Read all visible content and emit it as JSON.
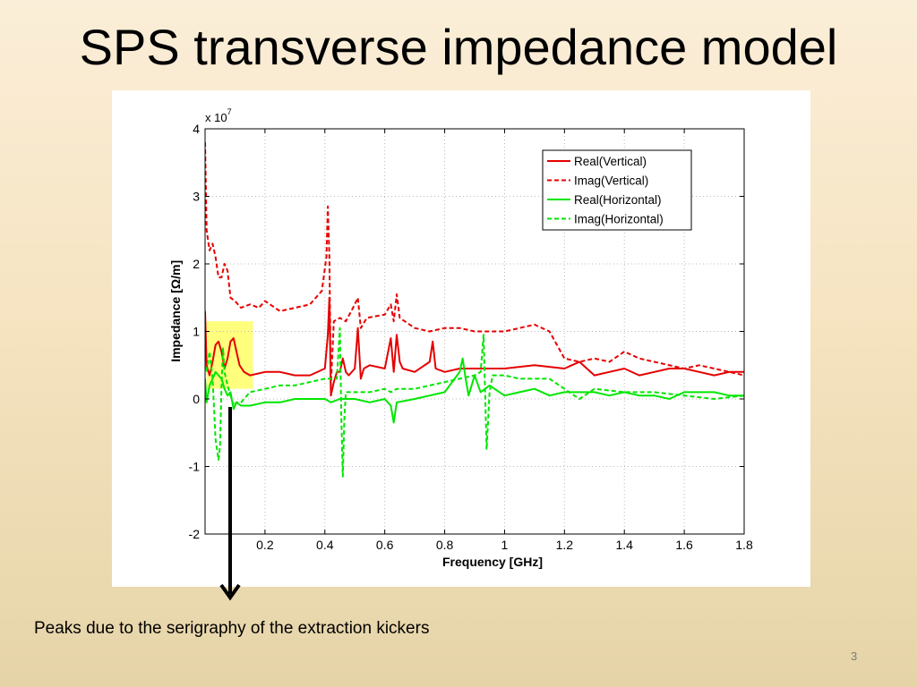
{
  "slide": {
    "title": "SPS transverse impedance model",
    "caption": "Peaks due to the serigraphy of the extraction kickers",
    "page_number": "3"
  },
  "colors": {
    "vertical": "#e60000",
    "horizontal": "#00e600",
    "highlight": "#ffff66"
  },
  "chart_data": {
    "type": "line",
    "title": "",
    "xlabel": "Frequency [GHz]",
    "ylabel": "Impedance [Ω/m]",
    "y_multiplier": "x 10",
    "y_multiplier_exp": "7",
    "xlim": [
      0,
      1.8
    ],
    "ylim": [
      -2,
      4
    ],
    "xticks": [
      0.2,
      0.4,
      0.6,
      0.8,
      1,
      1.2,
      1.4,
      1.6,
      1.8
    ],
    "xtick_labels": [
      "0.2",
      "0.4",
      "0.6",
      "0.8",
      "1",
      "1.2",
      "1.4",
      "1.6",
      "1.8"
    ],
    "yticks": [
      -2,
      -1,
      0,
      1,
      2,
      3,
      4
    ],
    "ytick_labels": [
      "-2",
      "-1",
      "0",
      "1",
      "2",
      "3",
      "4"
    ],
    "grid": true,
    "legend_position": "top-right",
    "highlight_region": {
      "x": [
        0.005,
        0.16
      ],
      "y": [
        0.15,
        1.15
      ]
    },
    "series": [
      {
        "name": "Real(Vertical)",
        "color": "#e60000",
        "dash": "solid",
        "x": [
          0.0,
          0.005,
          0.015,
          0.025,
          0.035,
          0.045,
          0.055,
          0.065,
          0.075,
          0.085,
          0.095,
          0.105,
          0.115,
          0.13,
          0.15,
          0.2,
          0.25,
          0.3,
          0.35,
          0.4,
          0.41,
          0.415,
          0.42,
          0.43,
          0.44,
          0.45,
          0.46,
          0.47,
          0.48,
          0.5,
          0.51,
          0.52,
          0.53,
          0.55,
          0.6,
          0.62,
          0.63,
          0.64,
          0.65,
          0.66,
          0.7,
          0.75,
          0.76,
          0.77,
          0.8,
          0.85,
          0.9,
          1.0,
          1.1,
          1.2,
          1.25,
          1.3,
          1.35,
          1.4,
          1.45,
          1.5,
          1.55,
          1.6,
          1.65,
          1.7,
          1.75,
          1.8
        ],
        "y": [
          1.3,
          0.5,
          0.35,
          0.55,
          0.8,
          0.85,
          0.7,
          0.45,
          0.6,
          0.85,
          0.9,
          0.7,
          0.5,
          0.4,
          0.35,
          0.4,
          0.4,
          0.35,
          0.35,
          0.45,
          0.95,
          1.5,
          0.05,
          0.25,
          0.4,
          0.4,
          0.6,
          0.4,
          0.35,
          0.45,
          1.05,
          0.3,
          0.45,
          0.5,
          0.45,
          0.9,
          0.4,
          0.95,
          0.55,
          0.45,
          0.4,
          0.55,
          0.85,
          0.45,
          0.4,
          0.45,
          0.45,
          0.45,
          0.5,
          0.45,
          0.55,
          0.35,
          0.4,
          0.45,
          0.35,
          0.4,
          0.45,
          0.45,
          0.4,
          0.35,
          0.4,
          0.4
        ]
      },
      {
        "name": "Imag(Vertical)",
        "color": "#e60000",
        "dash": "dashed",
        "x": [
          0.0,
          0.005,
          0.015,
          0.025,
          0.035,
          0.045,
          0.055,
          0.065,
          0.075,
          0.085,
          0.1,
          0.12,
          0.15,
          0.18,
          0.2,
          0.25,
          0.3,
          0.35,
          0.39,
          0.405,
          0.41,
          0.415,
          0.42,
          0.43,
          0.45,
          0.47,
          0.5,
          0.51,
          0.52,
          0.54,
          0.6,
          0.62,
          0.63,
          0.64,
          0.65,
          0.7,
          0.75,
          0.8,
          0.85,
          0.9,
          1.0,
          1.05,
          1.1,
          1.15,
          1.2,
          1.25,
          1.3,
          1.35,
          1.4,
          1.45,
          1.5,
          1.6,
          1.65,
          1.7,
          1.75,
          1.8
        ],
        "y": [
          3.8,
          2.5,
          2.2,
          2.3,
          2.1,
          1.8,
          1.8,
          2.0,
          1.9,
          1.5,
          1.45,
          1.35,
          1.4,
          1.35,
          1.45,
          1.3,
          1.35,
          1.4,
          1.6,
          2.1,
          2.85,
          2.1,
          0.2,
          1.15,
          1.2,
          1.15,
          1.4,
          1.5,
          1.05,
          1.2,
          1.25,
          1.4,
          1.15,
          1.55,
          1.2,
          1.05,
          1.0,
          1.05,
          1.05,
          1.0,
          1.0,
          1.05,
          1.1,
          1.0,
          0.6,
          0.55,
          0.6,
          0.55,
          0.7,
          0.6,
          0.55,
          0.45,
          0.5,
          0.45,
          0.4,
          0.35
        ]
      },
      {
        "name": "Real(Horizontal)",
        "color": "#00e600",
        "dash": "solid",
        "x": [
          0.0,
          0.005,
          0.015,
          0.025,
          0.035,
          0.045,
          0.055,
          0.065,
          0.075,
          0.085,
          0.095,
          0.105,
          0.12,
          0.15,
          0.2,
          0.25,
          0.3,
          0.35,
          0.4,
          0.42,
          0.45,
          0.5,
          0.55,
          0.6,
          0.62,
          0.63,
          0.64,
          0.7,
          0.75,
          0.8,
          0.85,
          0.86,
          0.87,
          0.88,
          0.9,
          0.92,
          0.95,
          1.0,
          1.05,
          1.1,
          1.15,
          1.2,
          1.25,
          1.3,
          1.35,
          1.4,
          1.45,
          1.5,
          1.55,
          1.6,
          1.65,
          1.7,
          1.75,
          1.8
        ],
        "y": [
          0.3,
          -0.05,
          0.2,
          0.3,
          0.4,
          0.35,
          0.3,
          0.15,
          0.05,
          0.1,
          -0.15,
          -0.05,
          -0.1,
          -0.1,
          -0.05,
          -0.05,
          0.0,
          0.0,
          0.0,
          -0.05,
          0.0,
          0.0,
          -0.05,
          0.0,
          -0.1,
          -0.35,
          -0.05,
          0.0,
          0.05,
          0.1,
          0.4,
          0.6,
          0.3,
          0.05,
          0.35,
          0.1,
          0.2,
          0.05,
          0.1,
          0.15,
          0.05,
          0.1,
          0.1,
          0.1,
          0.05,
          0.1,
          0.05,
          0.05,
          0.0,
          0.1,
          0.1,
          0.1,
          0.05,
          0.05
        ]
      },
      {
        "name": "Imag(Horizontal)",
        "color": "#00e600",
        "dash": "dashed",
        "x": [
          0.0,
          0.005,
          0.015,
          0.025,
          0.035,
          0.045,
          0.05,
          0.055,
          0.06,
          0.065,
          0.075,
          0.085,
          0.095,
          0.105,
          0.12,
          0.15,
          0.2,
          0.25,
          0.3,
          0.35,
          0.4,
          0.44,
          0.45,
          0.455,
          0.46,
          0.465,
          0.47,
          0.5,
          0.55,
          0.6,
          0.62,
          0.64,
          0.7,
          0.75,
          0.8,
          0.85,
          0.9,
          0.92,
          0.93,
          0.94,
          0.95,
          0.96,
          1.0,
          1.05,
          1.1,
          1.15,
          1.2,
          1.25,
          1.3,
          1.4,
          1.5,
          1.6,
          1.7,
          1.8
        ],
        "y": [
          0.5,
          0.4,
          0.7,
          0.3,
          -0.6,
          -0.9,
          -0.7,
          0.2,
          0.75,
          0.4,
          0.2,
          0.05,
          -0.1,
          -0.05,
          -0.05,
          0.1,
          0.15,
          0.2,
          0.2,
          0.25,
          0.3,
          0.3,
          1.05,
          -0.3,
          -1.15,
          -0.3,
          0.1,
          0.1,
          0.1,
          0.15,
          0.1,
          0.15,
          0.15,
          0.2,
          0.25,
          0.3,
          0.35,
          0.4,
          0.95,
          -0.75,
          0.1,
          0.35,
          0.35,
          0.3,
          0.3,
          0.3,
          0.15,
          0.0,
          0.15,
          0.1,
          0.1,
          0.05,
          0.0,
          0.05
        ]
      }
    ]
  }
}
